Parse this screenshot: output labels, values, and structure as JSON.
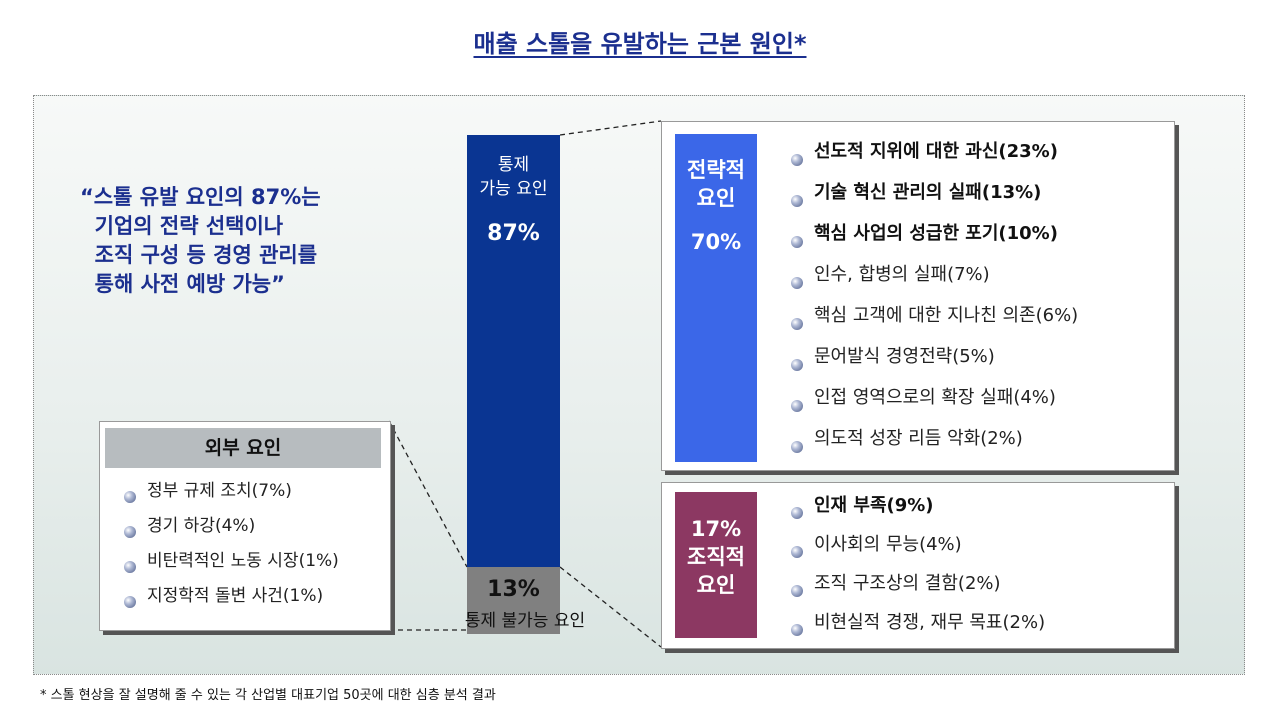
{
  "title": "매출 스톨을 유발하는 근본 원인*",
  "quote": {
    "lines": [
      "“스톨 유발 요인의 87%는",
      "  기업의 전략 선택이나",
      "  조직 구성 등 경영 관리를",
      "  통해 사전 예방 가능”"
    ]
  },
  "bar": {
    "controllable_label_1": "통제",
    "controllable_label_2": "가능 요인",
    "controllable_pct": "87%",
    "controllable_value": 87,
    "uncontrollable_pct": "13%",
    "uncontrollable_value": 13,
    "uncontrollable_label": "통제 불가능 요인",
    "colors": {
      "controllable": "#0a3592",
      "uncontrollable": "#808080"
    }
  },
  "strategic": {
    "tag_line1": "전략적",
    "tag_line2": "요인",
    "pct": "70%",
    "items": [
      {
        "text": "선도적 지위에 대한 과신(23%)",
        "bold": true
      },
      {
        "text": "기술 혁신 관리의 실패(13%)",
        "bold": true
      },
      {
        "text": "핵심 사업의 성급한 포기(10%)",
        "bold": true
      },
      {
        "text": "인수, 합병의 실패(7%)",
        "bold": false
      },
      {
        "text": "핵심 고객에 대한 지나친 의존(6%)",
        "bold": false
      },
      {
        "text": "문어발식 경영전략(5%)",
        "bold": false
      },
      {
        "text": "인접 영역으로의 확장 실패(4%)",
        "bold": false
      },
      {
        "text": "의도적 성장 리듬 악화(2%)",
        "bold": false
      }
    ],
    "color": "#3b67e8"
  },
  "organizational": {
    "pct": "17%",
    "tag_line1": "조직적",
    "tag_line2": "요인",
    "items": [
      {
        "text": "인재 부족(9%)",
        "bold": true
      },
      {
        "text": "이사회의 무능(4%)",
        "bold": false
      },
      {
        "text": "조직 구조상의 결함(2%)",
        "bold": false
      },
      {
        "text": "비현실적 경쟁, 재무 목표(2%)",
        "bold": false
      }
    ],
    "color": "#8c3862"
  },
  "external": {
    "header": "외부 요인",
    "items": [
      {
        "text": "정부 규제 조치(7%)",
        "bold": false
      },
      {
        "text": "경기 하강(4%)",
        "bold": false
      },
      {
        "text": "비탄력적인 노동 시장(1%)",
        "bold": false
      },
      {
        "text": "지정학적 돌변 사건(1%)",
        "bold": false
      }
    ]
  },
  "footnote": "* 스톨 현상을 잘 설명해 줄 수 있는 각 산업별 대표기업 50곳에 대한 심층 분석 결과"
}
